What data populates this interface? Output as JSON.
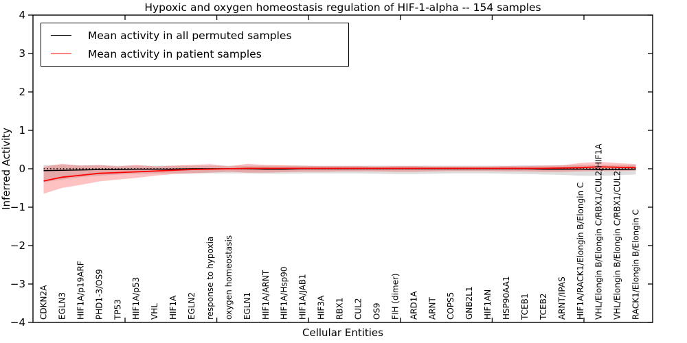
{
  "figure": {
    "title": "Hypoxic and oxygen homeostasis regulation of HIF-1-alpha -- 154 samples",
    "xlabel": "Cellular Entities",
    "ylabel": "Inferred Activity"
  },
  "legend": {
    "items": [
      {
        "label": "Mean activity in all permuted samples",
        "color": "#000000"
      },
      {
        "label": "Mean activity in patient samples",
        "color": "#ff0000"
      }
    ]
  },
  "chart_data": {
    "type": "line",
    "title": "Hypoxic and oxygen homeostasis regulation of HIF-1-alpha -- 154 samples",
    "xlabel": "Cellular Entities",
    "ylabel": "Inferred Activity",
    "ylim": [
      -4,
      4
    ],
    "yticks": [
      -4,
      -3,
      -2,
      -1,
      0,
      1,
      2,
      3,
      4
    ],
    "grid": false,
    "legend_position": "upper left",
    "zero_line_style": "dotted",
    "categories": [
      "CDKN2A",
      "EGLN3",
      "HIF1A/p19ARF",
      "PHD1-3/OS9",
      "TP53",
      "HIF1A/p53",
      "VHL",
      "HIF1A",
      "EGLN2",
      "response to hypoxia",
      "oxygen homeostasis",
      "EGLN1",
      "HIF1A/ARNT",
      "HIF1A/Hsp90",
      "HIF1A/JAB1",
      "HIF3A",
      "RBX1",
      "CUL2",
      "OS9",
      "FIH (dimer)",
      "ARD1A",
      "ARNT",
      "COPS5",
      "GNB2L1",
      "HIF1AN",
      "HSP90AA1",
      "TCEB1",
      "TCEB2",
      "ARNT/IPAS",
      "HIF1A/RACK1/Elongin B/Elongin C",
      "VHL/Elongin B/Elongin C/RBX1/CUL2/HIF1A",
      "VHL/Elongin B/Elongin C/RBX1/CUL2",
      "RACK1/Elongin B/Elongin C"
    ],
    "series": [
      {
        "name": "Mean activity in all permuted samples",
        "color": "#000000",
        "style": "solid",
        "values": [
          -0.05,
          -0.04,
          -0.03,
          -0.02,
          -0.02,
          -0.01,
          -0.01,
          -0.01,
          0,
          0,
          0,
          0,
          -0.01,
          -0.01,
          0,
          0,
          0,
          0,
          0,
          0,
          0,
          0,
          0,
          0,
          0,
          0,
          0,
          -0.01,
          -0.01,
          -0.01,
          -0.02,
          -0.02,
          -0.01
        ],
        "band": {
          "color": "rgba(0,0,0,0.13)",
          "upper": [
            0.1,
            0.1,
            0.09,
            0.09,
            0.08,
            0.08,
            0.08,
            0.08,
            0.08,
            0.08,
            0.08,
            0.08,
            0.08,
            0.08,
            0.08,
            0.08,
            0.08,
            0.08,
            0.08,
            0.08,
            0.08,
            0.08,
            0.08,
            0.08,
            0.08,
            0.08,
            0.09,
            0.09,
            0.09,
            0.1,
            0.1,
            0.1,
            0.1
          ],
          "lower": [
            -0.35,
            -0.28,
            -0.22,
            -0.18,
            -0.15,
            -0.13,
            -0.12,
            -0.12,
            -0.12,
            -0.12,
            -0.12,
            -0.12,
            -0.13,
            -0.13,
            -0.12,
            -0.12,
            -0.12,
            -0.12,
            -0.13,
            -0.14,
            -0.14,
            -0.13,
            -0.12,
            -0.12,
            -0.12,
            -0.13,
            -0.14,
            -0.15,
            -0.16,
            -0.18,
            -0.18,
            -0.17,
            -0.15
          ]
        }
      },
      {
        "name": "Mean activity in patient samples",
        "color": "#ff0000",
        "style": "solid",
        "values": [
          -0.32,
          -0.22,
          -0.17,
          -0.12,
          -0.1,
          -0.08,
          -0.06,
          -0.04,
          -0.02,
          -0.01,
          0.0,
          0.01,
          0.01,
          0.01,
          0.01,
          0.01,
          0.01,
          0.01,
          0.01,
          0.01,
          0.01,
          0.01,
          0.01,
          0.01,
          0.01,
          0.01,
          0.01,
          0.01,
          0.02,
          0.03,
          0.05,
          0.04,
          0.03
        ],
        "band": {
          "color": "rgba(255,0,0,0.24)",
          "upper": [
            0.05,
            0.13,
            0.08,
            0.1,
            0.06,
            0.1,
            0.06,
            0.08,
            0.1,
            0.12,
            0.06,
            0.13,
            0.1,
            0.09,
            0.08,
            0.07,
            0.07,
            0.07,
            0.06,
            0.07,
            0.07,
            0.06,
            0.06,
            0.06,
            0.06,
            0.07,
            0.07,
            0.08,
            0.09,
            0.15,
            0.18,
            0.15,
            0.12
          ],
          "lower": [
            -0.65,
            -0.5,
            -0.42,
            -0.33,
            -0.28,
            -0.24,
            -0.18,
            -0.14,
            -0.12,
            -0.1,
            -0.08,
            -0.1,
            -0.1,
            -0.09,
            -0.08,
            -0.08,
            -0.07,
            -0.07,
            -0.07,
            -0.08,
            -0.08,
            -0.07,
            -0.06,
            -0.06,
            -0.06,
            -0.07,
            -0.07,
            -0.08,
            -0.08,
            -0.07,
            -0.06,
            -0.06,
            -0.05
          ]
        }
      }
    ]
  }
}
